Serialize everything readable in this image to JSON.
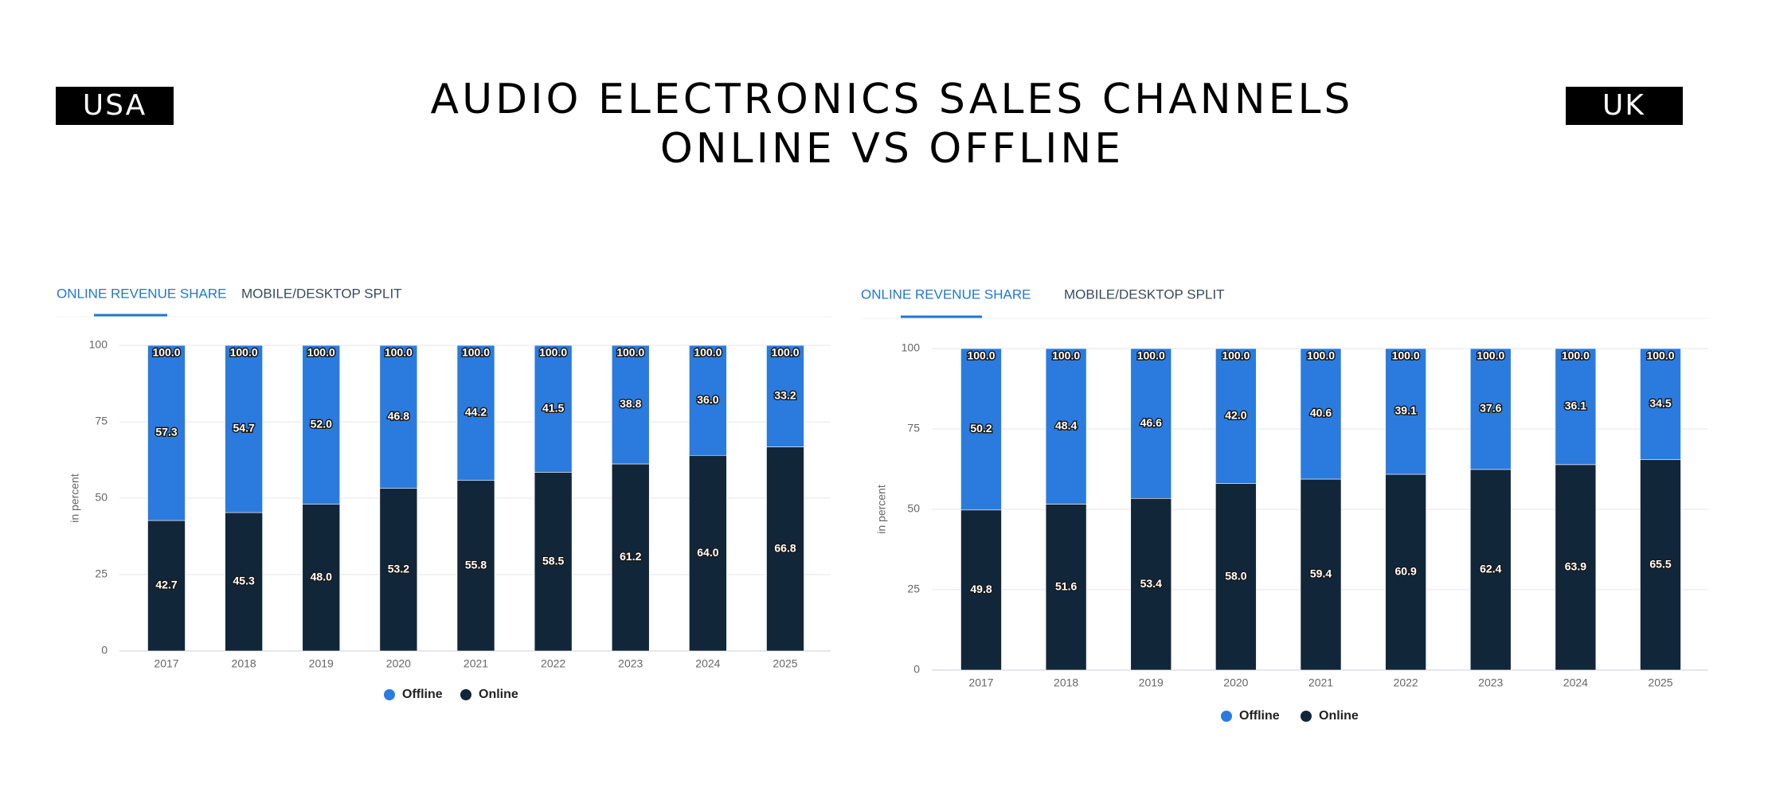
{
  "header": {
    "title_lines": [
      "AUDIO ELECTRONICS SALES CHANNELS",
      "ONLINE VS OFFLINE"
    ],
    "left_badge": "USA",
    "right_badge": "UK"
  },
  "chart_data": [
    {
      "type": "stacked_bar",
      "tabs": [
        "ONLINE REVENUE SHARE",
        "MOBILE/DESKTOP SPLIT"
      ],
      "y_label": "in percent",
      "categories": [
        "2017",
        "2018",
        "2019",
        "2020",
        "2021",
        "2022",
        "2023",
        "2024",
        "2025"
      ],
      "series": [
        {
          "name": "Offline",
          "color": "#2b7bde",
          "values": [
            57.3,
            54.7,
            52.0,
            46.8,
            44.2,
            41.5,
            38.8,
            36.0,
            33.2
          ],
          "value_labels": [
            "57.3",
            "54.7",
            "52.0",
            "46.8",
            "44.2",
            "41.5",
            "38.8",
            "36.0",
            "33.2"
          ]
        },
        {
          "name": "Online",
          "color": "#12263a",
          "values": [
            42.7,
            45.3,
            48.0,
            53.2,
            55.8,
            58.5,
            61.2,
            64.0,
            66.8
          ],
          "value_labels": [
            "42.7",
            "45.3",
            "48.0",
            "53.2",
            "55.8",
            "58.5",
            "61.2",
            "64.0",
            "66.8"
          ]
        }
      ],
      "totals": [
        100,
        100,
        100,
        100,
        100,
        100,
        100,
        100,
        100
      ],
      "total_labels": [
        "100.0",
        "100.0",
        "100.0",
        "100.0",
        "100.0",
        "100.0",
        "100.0",
        "100.0",
        "100.0"
      ],
      "ylim": [
        0,
        100
      ],
      "yticks": [
        0,
        25,
        50,
        75,
        100
      ],
      "grid": true,
      "legend": "bottom"
    },
    {
      "type": "stacked_bar",
      "tabs": [
        "ONLINE REVENUE SHARE",
        "MOBILE/DESKTOP SPLIT"
      ],
      "y_label": "in percent",
      "categories": [
        "2017",
        "2018",
        "2019",
        "2020",
        "2021",
        "2022",
        "2023",
        "2024",
        "2025"
      ],
      "series": [
        {
          "name": "Offline",
          "color": "#2b7bde",
          "values": [
            50.2,
            48.4,
            46.6,
            42.0,
            40.6,
            39.1,
            37.6,
            36.1,
            34.5
          ],
          "value_labels": [
            "50.2",
            "48.4",
            "46.6",
            "42.0",
            "40.6",
            "39.1",
            "37.6",
            "36.1",
            "34.5"
          ]
        },
        {
          "name": "Online",
          "color": "#12263a",
          "values": [
            49.8,
            51.6,
            53.4,
            58.0,
            59.4,
            60.9,
            62.4,
            63.9,
            65.5
          ],
          "value_labels": [
            "49.8",
            "51.6",
            "53.4",
            "58.0",
            "59.4",
            "60.9",
            "62.4",
            "63.9",
            "65.5"
          ]
        }
      ],
      "totals": [
        100,
        100,
        100,
        100,
        100,
        100,
        100,
        100,
        100
      ],
      "total_labels": [
        "100.0",
        "100.0",
        "100.0",
        "100.0",
        "100.0",
        "100.0",
        "100.0",
        "100.0",
        "100.0"
      ],
      "ylim": [
        0,
        100
      ],
      "yticks": [
        0,
        25,
        50,
        75,
        100
      ],
      "grid": true,
      "legend": "bottom"
    }
  ]
}
